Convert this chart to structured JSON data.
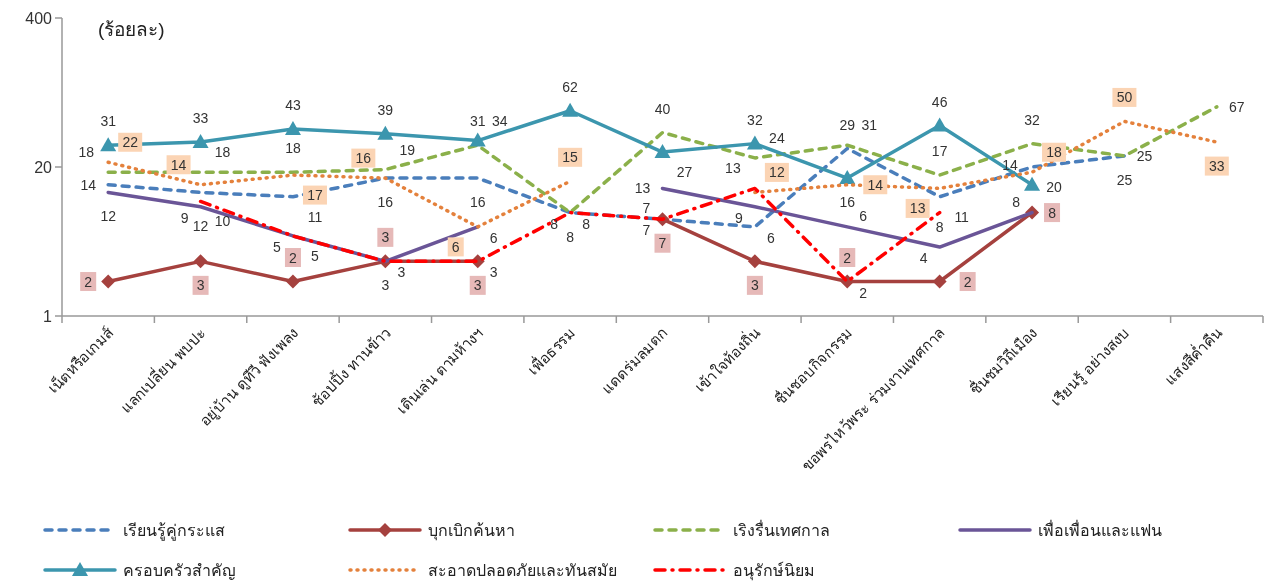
{
  "chart_data": {
    "type": "line",
    "ylabel": "(ร้อยละ)",
    "log": "y",
    "ylim": [
      1,
      400
    ],
    "yticks": [
      1,
      20,
      400
    ],
    "grid": false,
    "legend": "bottom",
    "data_labels": true,
    "categories": [
      "เน็ตหรือเกมส์",
      "แลกเปลี่ยน พบปะ",
      "อยู่บ้าน ดูทีวี ฟังเพลง",
      "ช้อปปิ้ง ทานข้าว",
      "เดินเล่น ตามห้างฯ",
      "เพื่อธรรม",
      "แดดร่มลมตก",
      "เข้าใจท้องถิ่น",
      "ชื่นชอบกิจกรรม",
      "ขอพรไหว้พระ ร่วมงานเทศกาล",
      "ชื่นชมวิถีเมือง",
      "เรียนรู้ อย่างสงบ",
      "แสงสีค่ำคืน"
    ],
    "series": [
      {
        "name": "เรียนรู้คู่กระแส",
        "color": "#4a7ebb",
        "line_style": "dashed",
        "marker": "none",
        "values": [
          14,
          12,
          11,
          16,
          16,
          8,
          7,
          6,
          29,
          11,
          20,
          25,
          null
        ]
      },
      {
        "name": "บุกเบิกค้นหา",
        "color": "#a5413e",
        "line_style": "solid",
        "marker": "diamond",
        "values": [
          2,
          3,
          2,
          3,
          3,
          null,
          7,
          3,
          2,
          2,
          8,
          null,
          null
        ]
      },
      {
        "name": "เริงรื่นเทศกาล",
        "color": "#8bb04a",
        "line_style": "dashed",
        "marker": "none",
        "values": [
          18,
          18,
          18,
          19,
          31,
          8,
          40,
          24,
          31,
          17,
          32,
          25,
          67
        ]
      },
      {
        "name": "เพื่อเพื่อนและแฟน",
        "color": "#6a5597",
        "line_style": "solid",
        "marker": "none",
        "values": [
          12,
          9,
          5,
          3,
          6,
          null,
          13,
          9,
          6,
          4,
          8,
          null,
          null
        ]
      },
      {
        "name": "ครอบครัวสำคัญ",
        "color": "#3c96ae",
        "line_style": "solid",
        "marker": "triangle",
        "values": [
          31,
          33,
          43,
          39,
          34,
          62,
          27,
          32,
          16,
          46,
          14,
          null,
          null
        ]
      },
      {
        "name": "สะอาดปลอดภัยและทันสมัย",
        "color": "#e4813c",
        "line_style": "dotted",
        "marker": "none",
        "values": [
          22,
          14,
          17,
          16,
          6,
          15,
          null,
          12,
          14,
          13,
          18,
          50,
          33
        ]
      },
      {
        "name": "อนุรักษ์นิยม",
        "color": "#ff0000",
        "line_style": "dashdot",
        "marker": "none",
        "values": [
          null,
          10,
          5,
          3,
          3,
          8,
          7,
          13,
          2,
          8,
          null,
          null,
          null
        ]
      }
    ]
  }
}
